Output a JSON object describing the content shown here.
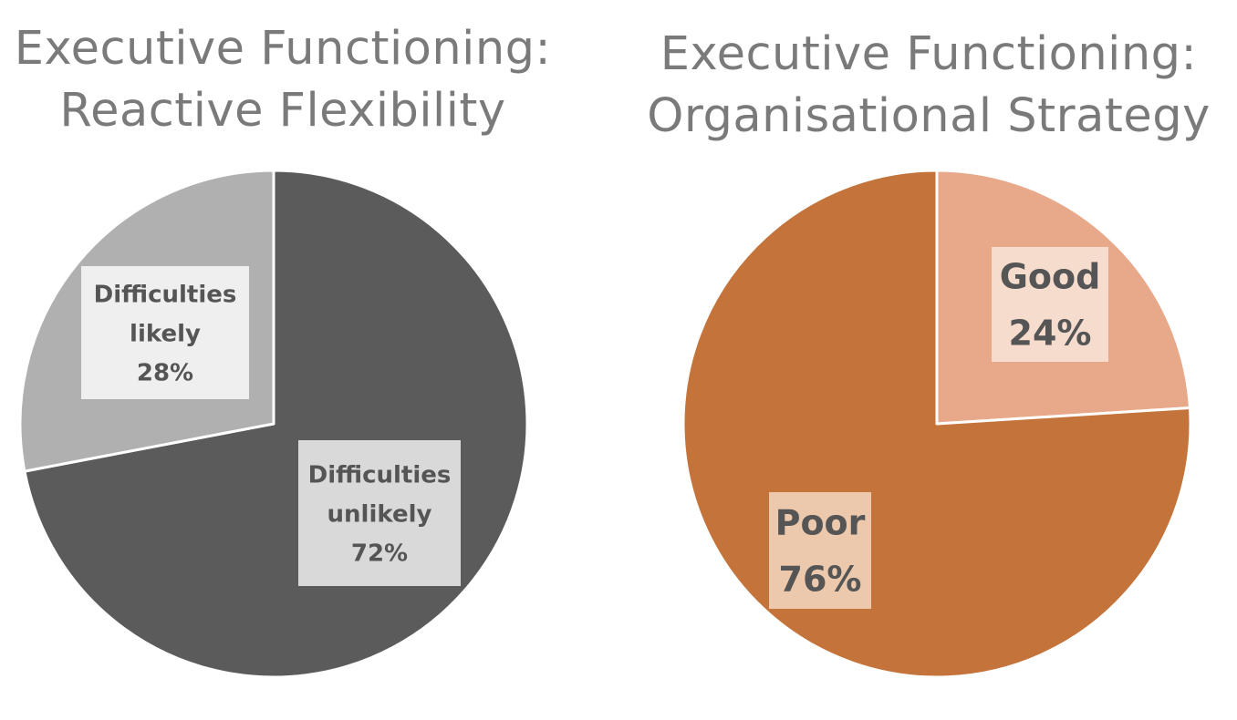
{
  "chart_data": [
    {
      "type": "pie",
      "title_lines": [
        "Executive Functioning:",
        "Reactive Flexibility"
      ],
      "slices": [
        {
          "label_lines": [
            "Difficulties",
            "unlikely",
            "72%"
          ],
          "value": 72,
          "color": "#5b5b5b",
          "label_bg": "#d9d9d9"
        },
        {
          "label_lines": [
            "Difficulties",
            "likely",
            "28%"
          ],
          "value": 28,
          "color": "#b0b0b0",
          "label_bg": "#efefef"
        }
      ]
    },
    {
      "type": "pie",
      "title_lines": [
        "Executive Functioning:",
        "Organisational Strategy"
      ],
      "slices": [
        {
          "label_lines": [
            "Good",
            "24%"
          ],
          "value": 24,
          "color": "#e8a98b",
          "label_bg": "#f6dccd"
        },
        {
          "label_lines": [
            "Poor",
            "76%"
          ],
          "value": 76,
          "color": "#c4733b",
          "label_bg": "#ecc8ac"
        }
      ]
    }
  ]
}
